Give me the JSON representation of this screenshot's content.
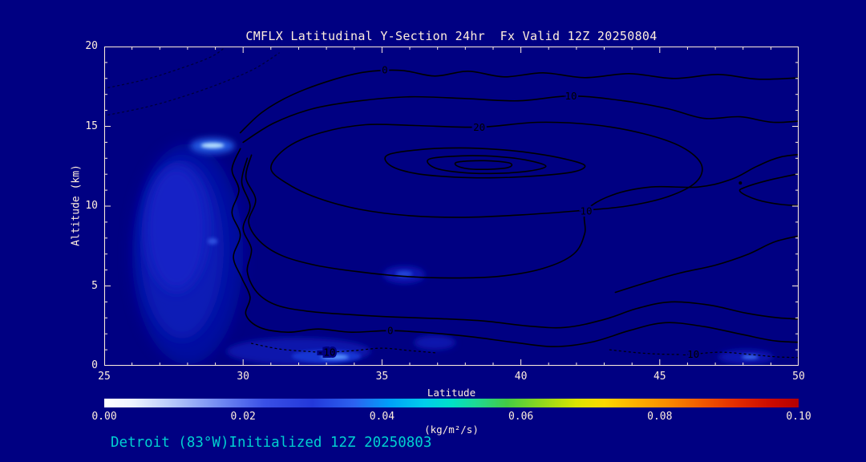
{
  "page": {
    "background": "#000082",
    "text_color": "#ffeedd",
    "axis_color": "#ffeedd",
    "footer_color": "#00d0d0",
    "contour_color": "#000000"
  },
  "footer": {
    "text": "Detroit (83°W)Initialized 12Z 20250803"
  },
  "chart_data": {
    "type": "contour",
    "title": "CMFLX Latitudinal Y-Section 24hr  Fx Valid 12Z 20250804",
    "xlabel": "Latitude",
    "ylabel": "Altitude (km)",
    "xlim": [
      25,
      50
    ],
    "ylim": [
      0,
      20
    ],
    "x_ticks": [
      25,
      30,
      35,
      40,
      45,
      50
    ],
    "x_minor_step": 1,
    "y_ticks": [
      0,
      5,
      10,
      15,
      20
    ],
    "y_minor_step": 1,
    "grid": false,
    "legend": false,
    "colorbar": {
      "label": "(kg/m²/s)",
      "min": 0.0,
      "max": 0.1,
      "tick_labels": [
        "0.00",
        "0.02",
        "0.04",
        "0.06",
        "0.08",
        "0.10"
      ],
      "stops": [
        [
          0,
          "#ffffff"
        ],
        [
          0.04,
          "#eef4ff"
        ],
        [
          0.1,
          "#b4c6fa"
        ],
        [
          0.17,
          "#6e86f2"
        ],
        [
          0.23,
          "#3a50e6"
        ],
        [
          0.3,
          "#2338da"
        ],
        [
          0.36,
          "#2c62f0"
        ],
        [
          0.41,
          "#00a0f8"
        ],
        [
          0.46,
          "#00ccec"
        ],
        [
          0.5,
          "#00e0c8"
        ],
        [
          0.54,
          "#22d88c"
        ],
        [
          0.58,
          "#44cc44"
        ],
        [
          0.63,
          "#90d81c"
        ],
        [
          0.68,
          "#dce400"
        ],
        [
          0.72,
          "#fcd800"
        ],
        [
          0.76,
          "#fcb400"
        ],
        [
          0.81,
          "#fa8c00"
        ],
        [
          0.86,
          "#f25a00"
        ],
        [
          0.91,
          "#e42c00"
        ],
        [
          0.96,
          "#cc0a00"
        ],
        [
          1,
          "#b40000"
        ]
      ]
    },
    "filled_regions": [
      {
        "name": "fill-left-column-outer",
        "cx": 28.0,
        "cy": 7.0,
        "rx": 2.0,
        "ry": 6.9,
        "color": "#050da0",
        "blur": 8
      },
      {
        "name": "fill-left-column-mid",
        "cx": 27.8,
        "cy": 7.3,
        "rx": 1.5,
        "ry": 5.6,
        "color": "#0c1ab6",
        "blur": 8
      },
      {
        "name": "fill-left-column-core",
        "cx": 27.6,
        "cy": 8.6,
        "rx": 1.1,
        "ry": 3.9,
        "color": "#1424c6",
        "blur": 8
      },
      {
        "name": "fill-column-speck",
        "cx": 28.9,
        "cy": 7.8,
        "rx": 0.18,
        "ry": 0.2,
        "color": "#2e50e0",
        "blur": 2
      },
      {
        "name": "fill-streak-glow",
        "cx": 28.9,
        "cy": 13.78,
        "rx": 0.8,
        "ry": 0.5,
        "color": "#2456e0",
        "blur": 4
      },
      {
        "name": "fill-streak-core",
        "cx": 28.9,
        "cy": 13.8,
        "rx": 0.42,
        "ry": 0.17,
        "color": "#b8e2ff",
        "blur": 2
      },
      {
        "name": "fill-bottomleft-haze",
        "cx": 32.0,
        "cy": 0.9,
        "rx": 2.6,
        "ry": 0.85,
        "color": "#0812ac",
        "blur": 4
      },
      {
        "name": "fill-bottomleft-glow",
        "cx": 33.0,
        "cy": 0.6,
        "rx": 1.25,
        "ry": 0.4,
        "color": "#1634d2",
        "blur": 2
      },
      {
        "name": "fill-bottomleft-core",
        "cx": 33.3,
        "cy": 0.55,
        "rx": 0.5,
        "ry": 0.16,
        "color": "#5c96ff",
        "blur": 2
      },
      {
        "name": "fill-mid-blob",
        "cx": 35.8,
        "cy": 5.7,
        "rx": 0.75,
        "ry": 0.55,
        "color": "#0c17b2",
        "blur": 4
      },
      {
        "name": "fill-mid-blob-core",
        "cx": 35.8,
        "cy": 5.75,
        "rx": 0.3,
        "ry": 0.2,
        "color": "#2244d8",
        "blur": 2
      },
      {
        "name": "fill-midlow-blob",
        "cx": 36.9,
        "cy": 1.45,
        "rx": 0.75,
        "ry": 0.45,
        "color": "#0b15ae",
        "blur": 4
      },
      {
        "name": "fill-right-blob",
        "cx": 48.1,
        "cy": 0.55,
        "rx": 1.0,
        "ry": 0.45,
        "color": "#0c17b2",
        "blur": 4
      },
      {
        "name": "fill-right-blob-core",
        "cx": 48.25,
        "cy": 0.55,
        "rx": 0.3,
        "ry": 0.14,
        "color": "#3a68ee",
        "blur": 2
      }
    ],
    "contours": [
      {
        "name": "contour-0-top",
        "style": "solid",
        "closed": false,
        "label": {
          "text": "0",
          "lat": 35.1,
          "alt": 18.55
        },
        "points": [
          [
            29.9,
            14.6
          ],
          [
            30.7,
            15.9
          ],
          [
            31.8,
            17.0
          ],
          [
            33.2,
            17.9
          ],
          [
            34.4,
            18.4
          ],
          [
            35.7,
            18.5
          ],
          [
            36.9,
            18.15
          ],
          [
            38.1,
            18.45
          ],
          [
            39.4,
            18.1
          ],
          [
            40.8,
            18.35
          ],
          [
            42.3,
            18.05
          ],
          [
            43.9,
            18.3
          ],
          [
            45.5,
            18.0
          ],
          [
            47.1,
            18.25
          ],
          [
            48.6,
            17.95
          ],
          [
            50.5,
            18.1
          ]
        ]
      },
      {
        "name": "contour-10-top",
        "style": "solid",
        "closed": false,
        "label": {
          "text": "10",
          "lat": 41.8,
          "alt": 16.9
        },
        "points": [
          [
            30.0,
            14.0
          ],
          [
            31.1,
            15.2
          ],
          [
            32.5,
            16.1
          ],
          [
            34.2,
            16.6
          ],
          [
            36.0,
            16.85
          ],
          [
            37.9,
            16.75
          ],
          [
            39.9,
            16.6
          ],
          [
            41.8,
            16.9
          ],
          [
            43.7,
            16.6
          ],
          [
            45.3,
            16.1
          ],
          [
            46.6,
            15.5
          ],
          [
            47.9,
            15.6
          ],
          [
            49.1,
            15.25
          ],
          [
            50.5,
            15.4
          ]
        ]
      },
      {
        "name": "contour-20-loop",
        "style": "solid",
        "closed": true,
        "label": {
          "text": "20",
          "lat": 38.5,
          "alt": 14.95
        },
        "points": [
          [
            31.0,
            12.4
          ],
          [
            31.6,
            13.7
          ],
          [
            32.8,
            14.6
          ],
          [
            34.4,
            15.1
          ],
          [
            36.2,
            15.05
          ],
          [
            38.5,
            14.95
          ],
          [
            40.6,
            15.25
          ],
          [
            42.6,
            15.1
          ],
          [
            44.4,
            14.55
          ],
          [
            45.8,
            13.7
          ],
          [
            46.5,
            12.6
          ],
          [
            46.3,
            11.5
          ],
          [
            45.3,
            10.6
          ],
          [
            43.8,
            10.0
          ],
          [
            42.0,
            9.7
          ],
          [
            40.0,
            9.45
          ],
          [
            38.0,
            9.3
          ],
          [
            36.0,
            9.4
          ],
          [
            34.2,
            9.8
          ],
          [
            32.7,
            10.5
          ],
          [
            31.6,
            11.4
          ]
        ]
      },
      {
        "name": "contour-inner-1",
        "style": "solid",
        "closed": true,
        "points": [
          [
            35.2,
            13.2
          ],
          [
            36.4,
            13.55
          ],
          [
            37.8,
            13.65
          ],
          [
            39.2,
            13.55
          ],
          [
            40.5,
            13.3
          ],
          [
            41.6,
            12.95
          ],
          [
            42.3,
            12.55
          ],
          [
            41.9,
            12.15
          ],
          [
            40.6,
            11.9
          ],
          [
            39.1,
            11.78
          ],
          [
            37.6,
            11.82
          ],
          [
            36.2,
            12.05
          ],
          [
            35.3,
            12.55
          ]
        ]
      },
      {
        "name": "contour-inner-2",
        "style": "solid",
        "closed": true,
        "points": [
          [
            36.7,
            12.95
          ],
          [
            37.9,
            13.15
          ],
          [
            39.2,
            13.1
          ],
          [
            40.3,
            12.85
          ],
          [
            40.9,
            12.5
          ],
          [
            40.3,
            12.2
          ],
          [
            39.1,
            12.05
          ],
          [
            37.9,
            12.1
          ],
          [
            36.9,
            12.4
          ]
        ]
      },
      {
        "name": "contour-inner-3",
        "style": "solid",
        "closed": true,
        "points": [
          [
            37.7,
            12.75
          ],
          [
            38.7,
            12.85
          ],
          [
            39.6,
            12.7
          ],
          [
            39.5,
            12.4
          ],
          [
            38.5,
            12.3
          ],
          [
            37.8,
            12.45
          ]
        ]
      },
      {
        "name": "contour-10-mid",
        "style": "solid",
        "closed": false,
        "label": {
          "text": "10",
          "lat": 42.35,
          "alt": 9.7
        },
        "points": [
          [
            30.3,
            13.2
          ],
          [
            30.1,
            11.8
          ],
          [
            30.45,
            10.4
          ],
          [
            30.2,
            9.0
          ],
          [
            30.6,
            7.8
          ],
          [
            31.4,
            6.9
          ],
          [
            32.6,
            6.3
          ],
          [
            34.1,
            5.9
          ],
          [
            35.8,
            5.6
          ],
          [
            37.5,
            5.5
          ],
          [
            39.2,
            5.6
          ],
          [
            40.8,
            6.1
          ],
          [
            41.9,
            7.0
          ],
          [
            42.3,
            8.3
          ],
          [
            42.35,
            9.7
          ],
          [
            43.3,
            10.7
          ],
          [
            44.7,
            11.2
          ],
          [
            46.4,
            11.2
          ],
          [
            47.6,
            11.7
          ],
          [
            48.5,
            12.5
          ],
          [
            49.4,
            13.1
          ],
          [
            50.5,
            13.3
          ]
        ]
      },
      {
        "name": "contour-0-bottom",
        "style": "solid",
        "closed": false,
        "label": {
          "text": "0",
          "lat": 35.3,
          "alt": 2.2
        },
        "points": [
          [
            29.9,
            13.6
          ],
          [
            29.6,
            12.3
          ],
          [
            29.85,
            11.0
          ],
          [
            29.6,
            9.6
          ],
          [
            29.9,
            8.2
          ],
          [
            29.65,
            6.8
          ],
          [
            29.95,
            5.5
          ],
          [
            30.25,
            4.3
          ],
          [
            30.1,
            3.2
          ],
          [
            30.6,
            2.4
          ],
          [
            31.6,
            2.1
          ],
          [
            32.7,
            2.3
          ],
          [
            33.9,
            2.1
          ],
          [
            35.3,
            2.2
          ],
          [
            36.8,
            2.05
          ],
          [
            38.3,
            1.8
          ],
          [
            39.8,
            1.45
          ],
          [
            41.2,
            1.2
          ],
          [
            42.6,
            1.5
          ],
          [
            43.9,
            2.2
          ],
          [
            45.2,
            2.7
          ],
          [
            46.6,
            2.45
          ],
          [
            48.0,
            1.95
          ],
          [
            49.2,
            1.55
          ],
          [
            50.5,
            1.45
          ]
        ]
      },
      {
        "name": "contour-10-lower",
        "style": "solid",
        "closed": false,
        "points": [
          [
            30.15,
            13.0
          ],
          [
            29.95,
            11.5
          ],
          [
            30.25,
            10.0
          ],
          [
            30.0,
            8.6
          ],
          [
            30.3,
            7.3
          ],
          [
            30.15,
            5.9
          ],
          [
            30.5,
            4.6
          ],
          [
            31.2,
            3.8
          ],
          [
            32.4,
            3.4
          ],
          [
            33.9,
            3.2
          ],
          [
            35.5,
            3.05
          ],
          [
            37.1,
            2.95
          ],
          [
            38.7,
            2.8
          ],
          [
            40.2,
            2.5
          ],
          [
            41.6,
            2.4
          ],
          [
            43.0,
            2.9
          ],
          [
            44.2,
            3.6
          ],
          [
            45.4,
            4.0
          ],
          [
            46.8,
            3.8
          ],
          [
            48.1,
            3.3
          ],
          [
            49.3,
            3.0
          ],
          [
            50.5,
            2.9
          ]
        ]
      },
      {
        "name": "contour-right-branch",
        "style": "solid",
        "closed": false,
        "points": [
          [
            43.4,
            4.6
          ],
          [
            44.5,
            5.2
          ],
          [
            45.7,
            5.8
          ],
          [
            47.0,
            6.3
          ],
          [
            48.2,
            7.0
          ],
          [
            49.2,
            7.8
          ],
          [
            50.5,
            8.3
          ]
        ]
      },
      {
        "name": "contour-right-notch",
        "style": "solid",
        "closed": false,
        "points": [
          [
            50.5,
            12.2
          ],
          [
            49.1,
            11.7
          ],
          [
            48.1,
            11.2
          ],
          [
            47.9,
            10.9
          ],
          [
            48.5,
            10.4
          ],
          [
            49.4,
            10.1
          ],
          [
            50.5,
            10.0
          ]
        ]
      },
      {
        "name": "contour-dotted-upperleft-1",
        "style": "dotted",
        "opacity": 0.55,
        "closed": false,
        "points": [
          [
            24.8,
            15.6
          ],
          [
            26.5,
            16.2
          ],
          [
            27.9,
            16.9
          ],
          [
            29.2,
            17.7
          ],
          [
            30.4,
            18.6
          ],
          [
            31.3,
            19.6
          ]
        ]
      },
      {
        "name": "contour-dotted-upperleft-2",
        "style": "dotted",
        "opacity": 0.55,
        "closed": false,
        "points": [
          [
            24.8,
            17.3
          ],
          [
            26.4,
            17.9
          ],
          [
            27.7,
            18.6
          ],
          [
            28.9,
            19.4
          ],
          [
            29.5,
            20.2
          ]
        ]
      },
      {
        "name": "contour-dotted-bottom-left",
        "style": "dotted",
        "opacity": 0.9,
        "closed": false,
        "label": {
          "text": "-10",
          "lat": 33.0,
          "alt": 0.85
        },
        "points": [
          [
            30.3,
            1.4
          ],
          [
            31.3,
            1.05
          ],
          [
            32.3,
            0.9
          ],
          [
            33.0,
            0.85
          ],
          [
            34.0,
            0.95
          ],
          [
            35.0,
            1.1
          ],
          [
            36.0,
            0.95
          ],
          [
            37.0,
            0.8
          ]
        ]
      },
      {
        "name": "contour-dotted-bottom-right",
        "style": "dotted",
        "opacity": 0.9,
        "closed": false,
        "label": {
          "text": "-10",
          "lat": 46.1,
          "alt": 0.72
        },
        "points": [
          [
            43.2,
            1.0
          ],
          [
            44.3,
            0.8
          ],
          [
            45.2,
            0.72
          ],
          [
            46.1,
            0.72
          ],
          [
            47.2,
            0.85
          ],
          [
            48.3,
            0.7
          ],
          [
            49.3,
            0.55
          ],
          [
            50.5,
            0.5
          ]
        ]
      }
    ],
    "point_markers": [
      {
        "lat": 47.9,
        "alt": 11.45
      }
    ]
  }
}
